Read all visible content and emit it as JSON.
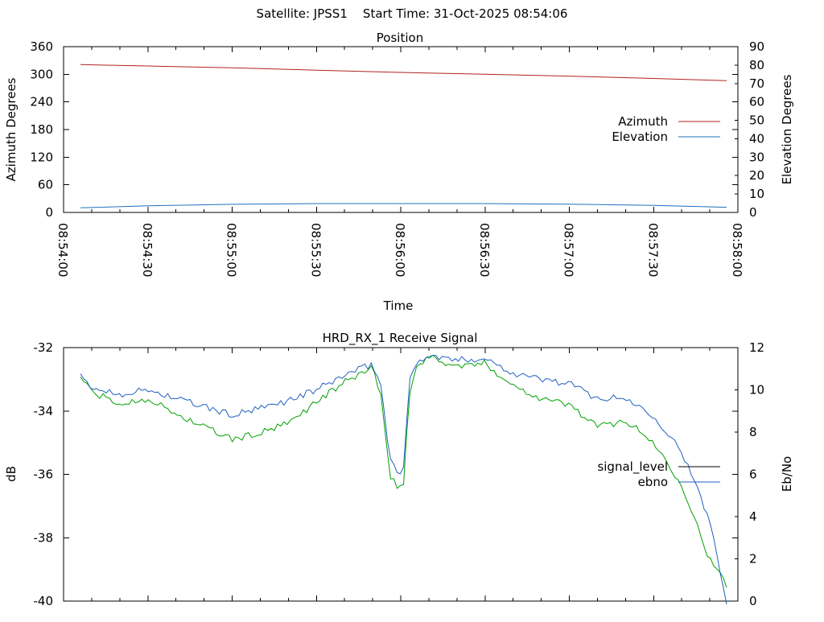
{
  "page": {
    "header_text": "Satellite: JPSS1    Start Time: 31-Oct-2025 08:54:06"
  },
  "colors": {
    "azimuth": "#b22222",
    "elevation": "#1f6fbf",
    "signal_level": "#00a000",
    "ebno": "#2060c0",
    "signal_level_legend": "#000000",
    "axis": "#000000"
  },
  "chart_data": [
    {
      "type": "line",
      "title": "Position",
      "xlabel": "Time",
      "ylabel": "Azimuth Degrees",
      "y2label": "Elevation Degrees",
      "x_tick_labels": [
        "08:54:00",
        "08:54:30",
        "08:55:00",
        "08:55:30",
        "08:56:00",
        "08:56:30",
        "08:57:00",
        "08:57:30",
        "08:58:00"
      ],
      "x_range_seconds": [
        0,
        240
      ],
      "ylim": [
        0,
        360
      ],
      "y_ticks": [
        0,
        60,
        120,
        180,
        240,
        300,
        360
      ],
      "y2lim": [
        0,
        90
      ],
      "y2_ticks": [
        0,
        10,
        20,
        30,
        40,
        50,
        60,
        70,
        80,
        90
      ],
      "grid": false,
      "legend_position": "right",
      "series": [
        {
          "name": "Azimuth",
          "axis": "y",
          "color_key": "azimuth",
          "x": [
            "08:54:06",
            "08:54:30",
            "08:55:00",
            "08:55:30",
            "08:56:00",
            "08:56:30",
            "08:57:00",
            "08:57:30",
            "08:57:56"
          ],
          "values": [
            321,
            318,
            314,
            309,
            304,
            300,
            296,
            291,
            286
          ]
        },
        {
          "name": "Elevation",
          "axis": "y2",
          "color_key": "elevation",
          "x": [
            "08:54:06",
            "08:54:30",
            "08:55:00",
            "08:55:30",
            "08:56:00",
            "08:56:30",
            "08:57:00",
            "08:57:30",
            "08:57:56"
          ],
          "values": [
            2.5,
            3.6,
            4.4,
            4.8,
            4.8,
            4.8,
            4.5,
            3.8,
            2.8
          ]
        }
      ]
    },
    {
      "type": "line",
      "title": "HRD_RX_1 Receive Signal",
      "ylabel": "dB",
      "y2label": "Eb/No",
      "x_range_seconds": [
        0,
        240
      ],
      "ylim": [
        -40,
        -32
      ],
      "y_ticks": [
        -40,
        -38,
        -36,
        -34,
        -32
      ],
      "y2lim": [
        0,
        12
      ],
      "y2_ticks": [
        0,
        2,
        4,
        6,
        8,
        10,
        12
      ],
      "grid": false,
      "legend_position": "right",
      "series": [
        {
          "name": "signal_level",
          "axis": "y",
          "color_key": "signal_level",
          "legend_color_key": "signal_level_legend",
          "x": [
            "08:54:06",
            "08:54:10",
            "08:54:20",
            "08:54:30",
            "08:54:40",
            "08:54:50",
            "08:55:00",
            "08:55:10",
            "08:55:20",
            "08:55:30",
            "08:55:40",
            "08:55:50",
            "08:55:53",
            "08:55:56",
            "08:55:59",
            "08:56:01",
            "08:56:03",
            "08:56:06",
            "08:56:10",
            "08:56:20",
            "08:56:30",
            "08:56:40",
            "08:56:50",
            "08:57:00",
            "08:57:10",
            "08:57:20",
            "08:57:30",
            "08:57:40",
            "08:57:50",
            "08:57:56"
          ],
          "values": [
            -32.9,
            -33.4,
            -33.8,
            -33.6,
            -34.1,
            -34.5,
            -34.9,
            -34.7,
            -34.4,
            -33.7,
            -33.1,
            -32.6,
            -33.6,
            -36.0,
            -36.4,
            -36.3,
            -33.5,
            -32.5,
            -32.3,
            -32.6,
            -32.5,
            -33.2,
            -33.6,
            -33.8,
            -34.5,
            -34.3,
            -35.0,
            -36.3,
            -38.7,
            -39.5
          ]
        },
        {
          "name": "ebno",
          "axis": "y2",
          "color_key": "ebno",
          "x": [
            "08:54:06",
            "08:54:10",
            "08:54:20",
            "08:54:30",
            "08:54:40",
            "08:54:50",
            "08:55:00",
            "08:55:10",
            "08:55:20",
            "08:55:30",
            "08:55:40",
            "08:55:50",
            "08:55:53",
            "08:55:56",
            "08:55:59",
            "08:56:01",
            "08:56:03",
            "08:56:06",
            "08:56:10",
            "08:56:20",
            "08:56:30",
            "08:56:40",
            "08:56:50",
            "08:57:00",
            "08:57:10",
            "08:57:20",
            "08:57:30",
            "08:57:40",
            "08:57:50",
            "08:57:56"
          ],
          "values": [
            10.6,
            10.1,
            9.8,
            10.0,
            9.6,
            9.2,
            8.8,
            9.1,
            9.5,
            10.0,
            10.7,
            11.2,
            10.2,
            6.8,
            6.1,
            6.3,
            10.3,
            11.4,
            11.6,
            11.4,
            11.5,
            10.8,
            10.5,
            10.3,
            9.6,
            9.6,
            8.8,
            7.1,
            3.8,
            0.0
          ]
        }
      ]
    }
  ]
}
